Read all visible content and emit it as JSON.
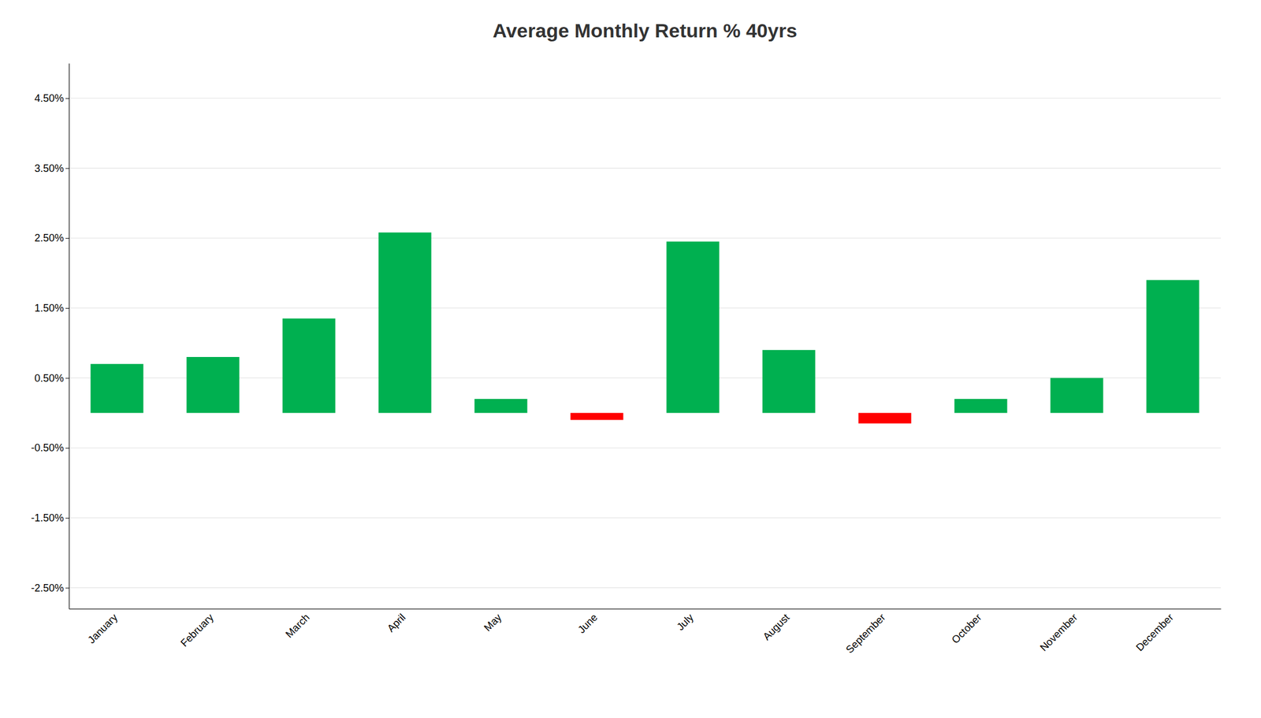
{
  "chart_data": {
    "type": "bar",
    "title": "Average Monthly Return % 40yrs",
    "categories": [
      "January",
      "February",
      "March",
      "April",
      "May",
      "June",
      "July",
      "August",
      "September",
      "October",
      "November",
      "December"
    ],
    "values": [
      0.007,
      0.008,
      0.0135,
      0.0258,
      0.002,
      -0.001,
      0.0245,
      0.009,
      -0.0015,
      0.002,
      0.005,
      0.019
    ],
    "colors": [
      "#00b050",
      "#00b050",
      "#00b050",
      "#00b050",
      "#00b050",
      "#ff0000",
      "#00b050",
      "#00b050",
      "#ff0000",
      "#00b050",
      "#00b050",
      "#00b050"
    ],
    "ylim": [
      -0.028,
      0.05
    ],
    "yticks": [
      {
        "value": -0.025,
        "label": "-2.50%"
      },
      {
        "value": -0.015,
        "label": "-1.50%"
      },
      {
        "value": -0.005,
        "label": "-0.50%"
      },
      {
        "value": 0.005,
        "label": "0.50%"
      },
      {
        "value": 0.015,
        "label": "1.50%"
      },
      {
        "value": 0.025,
        "label": "2.50%"
      },
      {
        "value": 0.035,
        "label": "3.50%"
      },
      {
        "value": 0.045,
        "label": "4.50%"
      }
    ],
    "grid": true
  }
}
